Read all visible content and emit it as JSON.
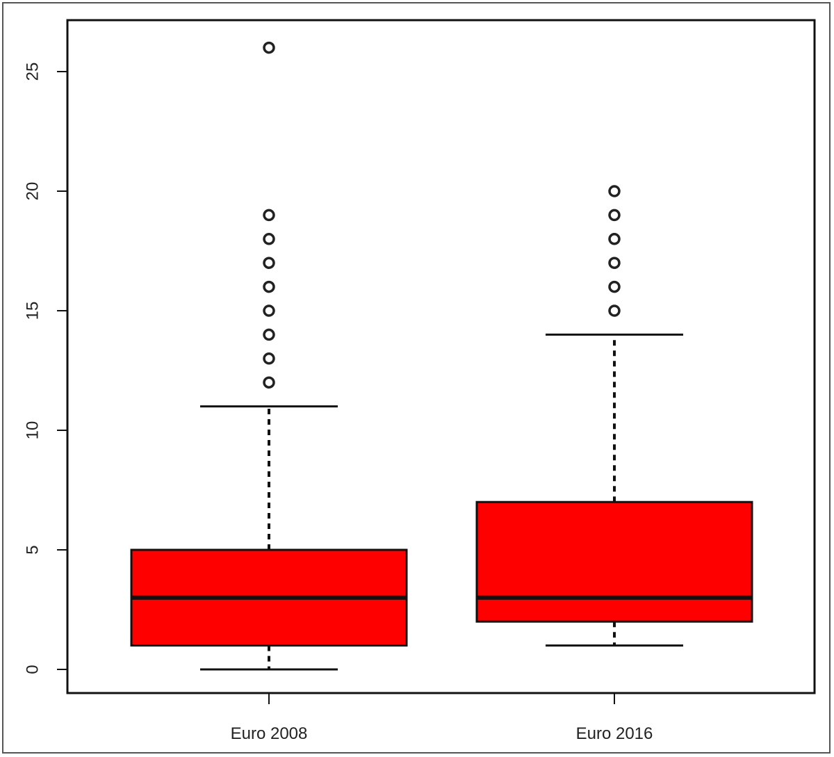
{
  "chart_data": {
    "type": "boxplot",
    "title": "",
    "xlabel": "",
    "ylabel": "",
    "ylim": [
      -1,
      27.2
    ],
    "y_ticks": [
      0,
      5,
      10,
      15,
      20,
      25
    ],
    "y_tick_labels": [
      "0",
      "5",
      "10",
      "15",
      "20",
      "25"
    ],
    "grid": false,
    "box_color": "#ff0000",
    "categories": [
      "Euro 2008",
      "Euro 2016"
    ],
    "boxes": [
      {
        "category": "Euro 2008",
        "whisker_low": 0,
        "q1": 1,
        "median": 3,
        "q3": 5,
        "whisker_high": 11,
        "outliers": [
          12,
          13,
          14,
          15,
          16,
          17,
          18,
          19,
          26
        ]
      },
      {
        "category": "Euro 2016",
        "whisker_low": 1,
        "q1": 2,
        "median": 3,
        "q3": 7,
        "whisker_high": 14,
        "outliers": [
          15,
          16,
          17,
          18,
          19,
          20
        ]
      }
    ]
  }
}
